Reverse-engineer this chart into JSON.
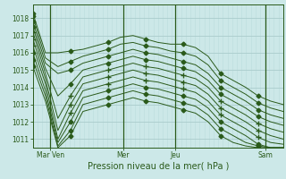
{
  "xlabel": "Pression niveau de la mer( hPa )",
  "bg_color": "#cce8e8",
  "plot_bg_color": "#cce8e8",
  "grid_color_h": "#aacccc",
  "grid_color_v": "#bbdddd",
  "line_color": "#2a5a1a",
  "ylim": [
    1010.5,
    1018.8
  ],
  "yticks": [
    1011,
    1012,
    1013,
    1014,
    1015,
    1016,
    1017,
    1018
  ],
  "xtick_labels": [
    "Mar Ven",
    "Mer",
    "Jeu",
    "Sam"
  ],
  "vline_positions": [
    0.07,
    0.36,
    0.57,
    0.93
  ],
  "series": [
    [
      1018.3,
      1016.0,
      1016.0,
      1016.1,
      1016.2,
      1016.4,
      1016.6,
      1016.9,
      1017.0,
      1016.8,
      1016.6,
      1016.5,
      1016.5,
      1016.3,
      1015.8,
      1014.8,
      1014.4,
      1014.0,
      1013.5,
      1013.2,
      1013.0
    ],
    [
      1018.1,
      1015.7,
      1015.2,
      1015.5,
      1015.8,
      1016.0,
      1016.2,
      1016.5,
      1016.6,
      1016.4,
      1016.3,
      1016.1,
      1016.0,
      1015.8,
      1015.3,
      1014.4,
      1014.0,
      1013.6,
      1013.1,
      1012.8,
      1012.6
    ],
    [
      1017.8,
      1015.4,
      1014.8,
      1015.0,
      1015.4,
      1015.6,
      1015.8,
      1016.0,
      1016.2,
      1016.0,
      1015.9,
      1015.7,
      1015.5,
      1015.3,
      1014.8,
      1014.0,
      1013.6,
      1013.2,
      1012.7,
      1012.4,
      1012.2
    ],
    [
      1017.5,
      1015.1,
      1013.5,
      1014.2,
      1015.0,
      1015.2,
      1015.4,
      1015.6,
      1015.8,
      1015.6,
      1015.5,
      1015.3,
      1015.1,
      1014.9,
      1014.4,
      1013.6,
      1013.2,
      1012.8,
      1012.3,
      1012.0,
      1011.8
    ],
    [
      1017.2,
      1014.8,
      1012.2,
      1013.5,
      1014.6,
      1014.8,
      1015.0,
      1015.2,
      1015.4,
      1015.2,
      1015.1,
      1014.9,
      1014.7,
      1014.5,
      1014.0,
      1013.2,
      1012.8,
      1012.4,
      1011.9,
      1011.6,
      1011.4
    ],
    [
      1016.8,
      1014.5,
      1011.5,
      1013.0,
      1014.2,
      1014.4,
      1014.6,
      1014.8,
      1015.0,
      1014.8,
      1014.7,
      1014.5,
      1014.3,
      1014.1,
      1013.6,
      1012.8,
      1012.4,
      1012.0,
      1011.5,
      1011.2,
      1011.0
    ],
    [
      1016.4,
      1014.2,
      1011.0,
      1012.5,
      1013.8,
      1014.0,
      1014.2,
      1014.4,
      1014.6,
      1014.4,
      1014.3,
      1014.1,
      1013.9,
      1013.7,
      1013.2,
      1012.4,
      1012.0,
      1011.6,
      1011.1,
      1010.8,
      1010.7
    ],
    [
      1016.0,
      1013.8,
      1010.8,
      1012.0,
      1013.4,
      1013.6,
      1013.8,
      1014.0,
      1014.2,
      1014.0,
      1013.9,
      1013.7,
      1013.5,
      1013.3,
      1012.8,
      1012.0,
      1011.6,
      1011.2,
      1010.7,
      1010.5,
      1010.5
    ],
    [
      1015.6,
      1013.5,
      1010.6,
      1011.5,
      1013.0,
      1013.2,
      1013.4,
      1013.6,
      1013.8,
      1013.6,
      1013.5,
      1013.3,
      1013.1,
      1012.9,
      1012.4,
      1011.6,
      1011.2,
      1010.8,
      1010.6,
      1010.5,
      1010.5
    ],
    [
      1015.2,
      1013.2,
      1010.5,
      1011.2,
      1012.6,
      1012.8,
      1013.0,
      1013.2,
      1013.4,
      1013.2,
      1013.1,
      1012.9,
      1012.7,
      1012.5,
      1012.0,
      1011.2,
      1010.8,
      1010.6,
      1010.5,
      1010.5,
      1010.5
    ]
  ],
  "n_points": 21
}
